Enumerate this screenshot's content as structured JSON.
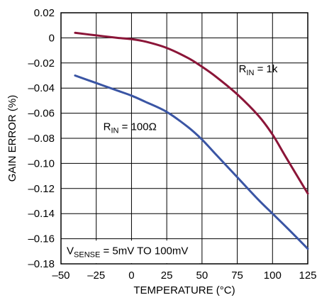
{
  "chart_data": {
    "type": "line",
    "xlabel": "TEMPERATURE (°C)",
    "ylabel": "GAIN ERROR (%)",
    "xlim": [
      -50,
      125
    ],
    "ylim": [
      -0.18,
      0.02
    ],
    "xticks": [
      -50,
      -25,
      0,
      25,
      50,
      75,
      100,
      125
    ],
    "xtick_labels": [
      "–50",
      "–25",
      "0",
      "25",
      "50",
      "75",
      "100",
      "125"
    ],
    "yticks": [
      0.02,
      0,
      -0.02,
      -0.04,
      -0.06,
      -0.08,
      -0.1,
      -0.12,
      -0.14,
      -0.16,
      -0.18
    ],
    "ytick_labels": [
      "0.02",
      "0",
      "–0.02",
      "–0.04",
      "–0.06",
      "–0.08",
      "–0.10",
      "–0.12",
      "–0.14",
      "–0.16",
      "–0.18"
    ],
    "grid": true,
    "annotation": {
      "main": "V",
      "sub": "SENSE",
      "rest": " = 5mV TO 100mV"
    },
    "series": [
      {
        "name": "RIN = 1k",
        "label_main": "R",
        "label_sub": "IN",
        "label_rest": " = 1k",
        "color": "#8b1538",
        "x": [
          -40,
          -25,
          -10,
          0,
          10,
          25,
          40,
          50,
          60,
          75,
          90,
          100,
          110,
          125
        ],
        "y": [
          0.004,
          0.002,
          0.0,
          -0.001,
          -0.003,
          -0.008,
          -0.016,
          -0.023,
          -0.031,
          -0.045,
          -0.062,
          -0.077,
          -0.096,
          -0.124
        ]
      },
      {
        "name": "RIN = 100Ω",
        "label_main": "R",
        "label_sub": "IN",
        "label_rest": " = 100Ω",
        "color": "#3a55a4",
        "x": [
          -40,
          -25,
          -10,
          0,
          10,
          25,
          40,
          50,
          60,
          75,
          90,
          100,
          110,
          125
        ],
        "y": [
          -0.03,
          -0.036,
          -0.042,
          -0.046,
          -0.051,
          -0.059,
          -0.071,
          -0.081,
          -0.093,
          -0.111,
          -0.129,
          -0.14,
          -0.151,
          -0.168
        ]
      }
    ]
  }
}
